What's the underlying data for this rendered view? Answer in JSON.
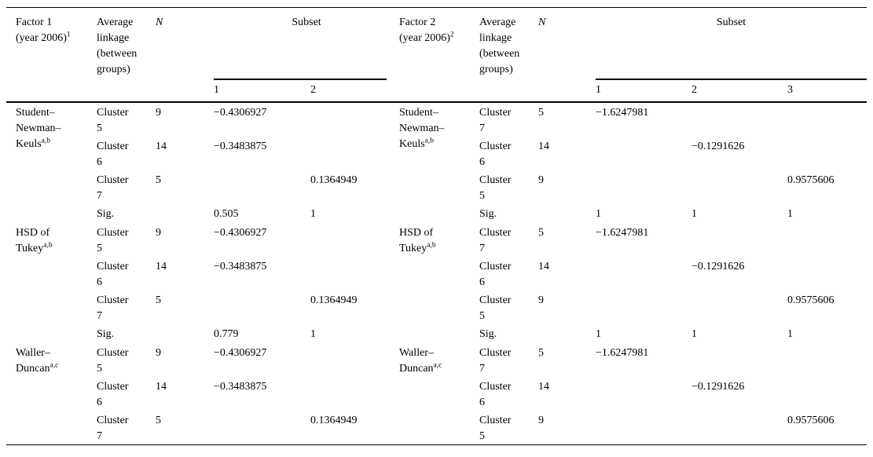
{
  "table": {
    "left": {
      "factor": {
        "label": "Factor 1 (year 2006)",
        "sup": "1"
      },
      "linkage": "Average linkage (between groups)",
      "n": "N",
      "subset": "Subset",
      "cols": [
        "1",
        "2"
      ]
    },
    "right": {
      "factor": {
        "label": "Factor 2 (year 2006)",
        "sup": "2"
      },
      "linkage": "Average linkage (between groups)",
      "n": "N",
      "subset": "Subset",
      "cols": [
        "1",
        "2",
        "3"
      ]
    },
    "bands": [
      {
        "left_method": {
          "label": "Student–Newman–Keuls",
          "sup": "a,b"
        },
        "right_method": {
          "label": "Student–Newman–Keuls",
          "sup": "a,b"
        },
        "rows": [
          {
            "left": {
              "cluster": "Cluster 5",
              "n": "9",
              "s": [
                "−0.4306927",
                ""
              ]
            },
            "right": {
              "cluster": "Cluster 7",
              "n": "5",
              "s": [
                "−1.6247981",
                "",
                ""
              ]
            }
          },
          {
            "left": {
              "cluster": "Cluster 6",
              "n": "14",
              "s": [
                "−0.3483875",
                ""
              ]
            },
            "right": {
              "cluster": "Cluster 6",
              "n": "14",
              "s": [
                "",
                "−0.1291626",
                ""
              ]
            }
          },
          {
            "left": {
              "cluster": "Cluster 7",
              "n": "5",
              "s": [
                "",
                "0.1364949"
              ]
            },
            "right": {
              "cluster": "Cluster 5",
              "n": "9",
              "s": [
                "",
                "",
                "0.9575606"
              ]
            }
          }
        ],
        "sig": {
          "label": "Sig.",
          "left": [
            "0.505",
            "1"
          ],
          "right": [
            "1",
            "1",
            "1"
          ]
        }
      },
      {
        "left_method": {
          "label": "HSD of Tukey",
          "sup": "a,b"
        },
        "right_method": {
          "label": "HSD of Tukey",
          "sup": "a,b"
        },
        "rows": [
          {
            "left": {
              "cluster": "Cluster 5",
              "n": "9",
              "s": [
                "−0.4306927",
                ""
              ]
            },
            "right": {
              "cluster": "Cluster 7",
              "n": "5",
              "s": [
                "−1.6247981",
                "",
                ""
              ]
            }
          },
          {
            "left": {
              "cluster": "Cluster 6",
              "n": "14",
              "s": [
                "−0.3483875",
                ""
              ]
            },
            "right": {
              "cluster": "Cluster 6",
              "n": "14",
              "s": [
                "",
                "−0.1291626",
                ""
              ]
            }
          },
          {
            "left": {
              "cluster": "Cluster 7",
              "n": "5",
              "s": [
                "",
                "0.1364949"
              ]
            },
            "right": {
              "cluster": "Cluster 5",
              "n": "9",
              "s": [
                "",
                "",
                "0.9575606"
              ]
            }
          }
        ],
        "sig": {
          "label": "Sig.",
          "left": [
            "0.779",
            "1"
          ],
          "right": [
            "1",
            "1",
            "1"
          ]
        }
      },
      {
        "left_method": {
          "label": "Waller–Duncan",
          "sup": "a,c"
        },
        "right_method": {
          "label": "Waller–Duncan",
          "sup": "a,c"
        },
        "rows": [
          {
            "left": {
              "cluster": "Cluster 5",
              "n": "9",
              "s": [
                "−0.4306927",
                ""
              ]
            },
            "right": {
              "cluster": "Cluster 7",
              "n": "5",
              "s": [
                "−1.6247981",
                "",
                ""
              ]
            }
          },
          {
            "left": {
              "cluster": "Cluster 6",
              "n": "14",
              "s": [
                "−0.3483875",
                ""
              ]
            },
            "right": {
              "cluster": "Cluster 6",
              "n": "14",
              "s": [
                "",
                "−0.1291626",
                ""
              ]
            }
          },
          {
            "left": {
              "cluster": "Cluster 7",
              "n": "5",
              "s": [
                "",
                "0.1364949"
              ]
            },
            "right": {
              "cluster": "Cluster 5",
              "n": "9",
              "s": [
                "",
                "",
                "0.9575606"
              ]
            }
          }
        ],
        "sig": null
      }
    ]
  }
}
